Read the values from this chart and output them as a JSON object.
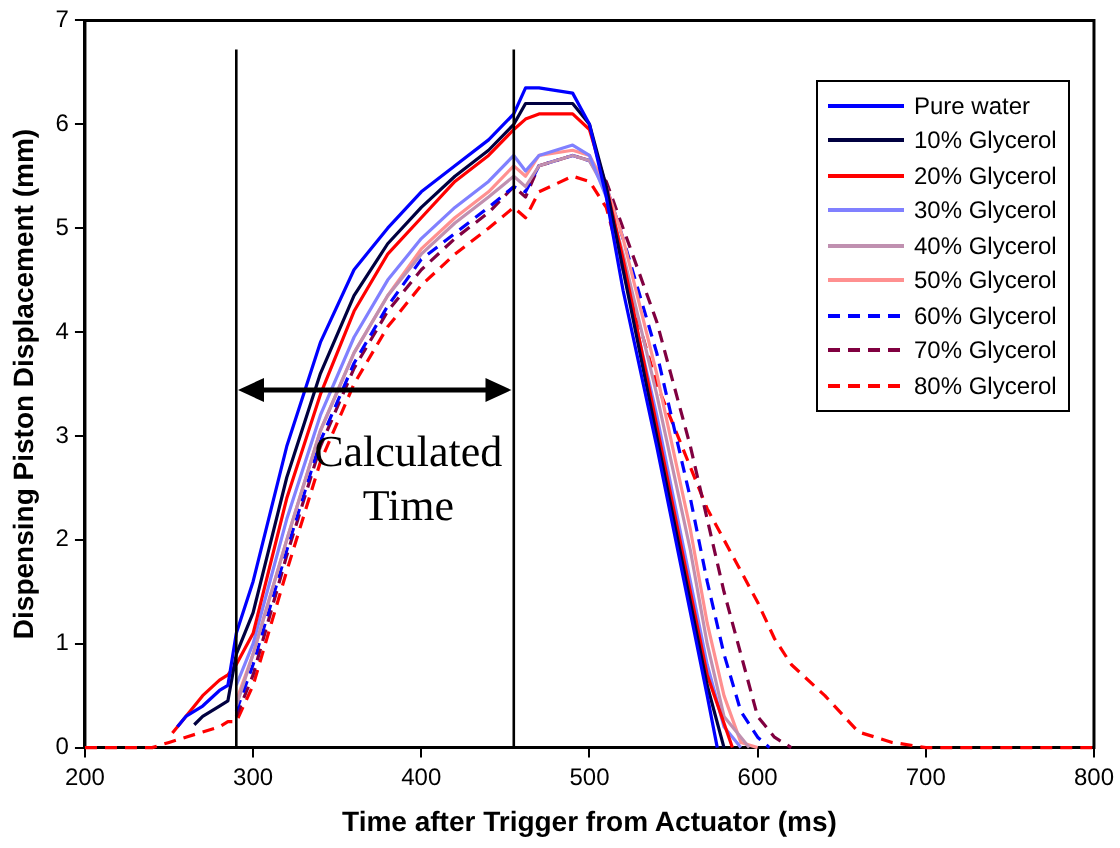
{
  "chart_data": {
    "type": "line",
    "xlabel": "Time after Trigger from Actuator (ms)",
    "ylabel": "Dispensing Piston Displacement (mm)",
    "xlim": [
      200,
      800
    ],
    "xticks": [
      200,
      300,
      400,
      500,
      600,
      700,
      800
    ],
    "ylim": [
      0,
      7
    ],
    "yticks": [
      0,
      1,
      2,
      3,
      4,
      5,
      6,
      7
    ],
    "grid": false,
    "legend": "top right",
    "marker": "none",
    "ref_lines": [
      {
        "axis": "x",
        "value": 290
      },
      {
        "axis": "x",
        "value": 455
      }
    ],
    "annotations": [
      "Calculated Time"
    ],
    "series": [
      {
        "name": "Pure water",
        "color": "#0000ff",
        "line_style": "solid",
        "x": [
          255,
          260,
          270,
          280,
          285,
          290,
          300,
          320,
          340,
          360,
          380,
          400,
          420,
          440,
          455,
          462,
          470,
          490,
          500,
          510,
          520,
          540,
          560,
          570,
          576
        ],
        "values": [
          0.2,
          0.3,
          0.4,
          0.55,
          0.6,
          1.1,
          1.6,
          2.9,
          3.9,
          4.6,
          5.0,
          5.35,
          5.6,
          5.85,
          6.1,
          6.35,
          6.35,
          6.3,
          6.0,
          5.3,
          4.4,
          2.9,
          1.3,
          0.5,
          0
        ]
      },
      {
        "name": "10% Glycerol",
        "color": "#000040",
        "line_style": "solid",
        "x": [
          265,
          270,
          280,
          285,
          290,
          300,
          320,
          340,
          360,
          380,
          400,
          420,
          440,
          455,
          462,
          470,
          490,
          500,
          510,
          520,
          540,
          560,
          570,
          580
        ],
        "values": [
          0.22,
          0.3,
          0.4,
          0.45,
          0.9,
          1.3,
          2.6,
          3.6,
          4.35,
          4.85,
          5.2,
          5.5,
          5.75,
          6.0,
          6.2,
          6.2,
          6.2,
          6.0,
          5.4,
          4.6,
          3.0,
          1.4,
          0.6,
          0
        ]
      },
      {
        "name": "20% Glycerol",
        "color": "#ff0000",
        "line_style": "solid",
        "x": [
          252,
          260,
          270,
          280,
          285,
          290,
          300,
          320,
          340,
          360,
          380,
          400,
          420,
          440,
          455,
          462,
          470,
          490,
          500,
          510,
          520,
          540,
          560,
          570,
          585
        ],
        "values": [
          0.14,
          0.3,
          0.5,
          0.65,
          0.7,
          0.8,
          1.1,
          2.4,
          3.4,
          4.2,
          4.75,
          5.1,
          5.45,
          5.7,
          5.95,
          6.05,
          6.1,
          6.1,
          5.95,
          5.4,
          4.7,
          3.1,
          1.5,
          0.7,
          0
        ]
      },
      {
        "name": "30% Glycerol",
        "color": "#8080ff",
        "line_style": "solid",
        "x": [
          290,
          300,
          320,
          340,
          360,
          380,
          400,
          420,
          440,
          455,
          462,
          470,
          490,
          500,
          510,
          520,
          540,
          560,
          570,
          580,
          590
        ],
        "values": [
          0.6,
          1.0,
          2.2,
          3.2,
          3.95,
          4.5,
          4.9,
          5.2,
          5.45,
          5.7,
          5.55,
          5.7,
          5.8,
          5.7,
          5.3,
          4.6,
          3.2,
          1.6,
          0.8,
          0.2,
          0
        ]
      },
      {
        "name": "40% Glycerol",
        "color": "#c090b0",
        "line_style": "solid",
        "x": [
          290,
          300,
          320,
          340,
          360,
          380,
          400,
          420,
          440,
          455,
          462,
          470,
          490,
          500,
          510,
          520,
          540,
          560,
          570,
          580,
          595
        ],
        "values": [
          0.4,
          0.9,
          2.0,
          3.05,
          3.8,
          4.35,
          4.75,
          5.05,
          5.3,
          5.5,
          5.4,
          5.6,
          5.7,
          5.65,
          5.35,
          4.75,
          3.4,
          1.9,
          1.0,
          0.3,
          0
        ]
      },
      {
        "name": "50% Glycerol",
        "color": "#ff9090",
        "line_style": "solid",
        "x": [
          290,
          300,
          320,
          340,
          360,
          380,
          400,
          420,
          440,
          455,
          462,
          470,
          490,
          500,
          510,
          520,
          540,
          560,
          570,
          580,
          590,
          600
        ],
        "values": [
          0.45,
          0.9,
          2.0,
          3.05,
          3.8,
          4.35,
          4.8,
          5.1,
          5.35,
          5.6,
          5.5,
          5.7,
          5.75,
          5.7,
          5.4,
          4.9,
          3.6,
          2.1,
          1.2,
          0.5,
          0.05,
          0
        ]
      },
      {
        "name": "60% Glycerol",
        "color": "#0000ff",
        "line_style": "dashed",
        "x": [
          290,
          300,
          320,
          340,
          360,
          380,
          400,
          420,
          440,
          455,
          462,
          470,
          490,
          500,
          510,
          520,
          540,
          560,
          570,
          580,
          590,
          600,
          607
        ],
        "values": [
          0.35,
          0.8,
          1.9,
          2.95,
          3.7,
          4.25,
          4.7,
          4.95,
          5.2,
          5.4,
          5.35,
          5.6,
          5.7,
          5.65,
          5.4,
          4.9,
          3.8,
          2.4,
          1.6,
          0.9,
          0.35,
          0.1,
          0
        ]
      },
      {
        "name": "70% Glycerol",
        "color": "#800040",
        "line_style": "dashed",
        "x": [
          290,
          300,
          320,
          340,
          360,
          380,
          400,
          420,
          440,
          455,
          462,
          470,
          490,
          500,
          510,
          520,
          540,
          560,
          570,
          580,
          590,
          600,
          610,
          620
        ],
        "values": [
          0.3,
          0.7,
          1.85,
          2.9,
          3.65,
          4.2,
          4.6,
          4.9,
          5.15,
          5.4,
          5.3,
          5.6,
          5.7,
          5.65,
          5.45,
          5.0,
          4.1,
          2.9,
          2.2,
          1.5,
          0.9,
          0.3,
          0.1,
          0
        ]
      },
      {
        "name": "80% Glycerol",
        "color": "#ff0000",
        "line_style": "dashed",
        "x": [
          200,
          240,
          250,
          260,
          270,
          280,
          285,
          290,
          300,
          320,
          340,
          360,
          380,
          400,
          420,
          440,
          455,
          462,
          470,
          490,
          500,
          510,
          520,
          540,
          560,
          570,
          580,
          590,
          600,
          610,
          620,
          640,
          660,
          680,
          700,
          800
        ],
        "values": [
          0,
          0,
          0.05,
          0.1,
          0.15,
          0.2,
          0.25,
          0.25,
          0.6,
          1.7,
          2.75,
          3.5,
          4.05,
          4.45,
          4.75,
          5.0,
          5.2,
          5.1,
          5.35,
          5.5,
          5.45,
          5.2,
          4.6,
          3.5,
          2.7,
          2.3,
          2.0,
          1.7,
          1.4,
          1.05,
          0.8,
          0.5,
          0.15,
          0.05,
          0,
          0
        ]
      }
    ]
  }
}
